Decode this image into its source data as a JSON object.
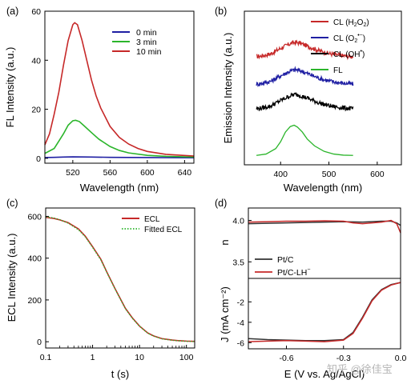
{
  "panels": [
    {
      "label": "(a)",
      "type": "line",
      "xlabel": "Wavelength (nm)",
      "ylabel": "FL Intensity (a.u.)",
      "xlim": [
        490,
        650
      ],
      "ylim": [
        -2,
        60
      ],
      "xticks": [
        520,
        560,
        600,
        640
      ],
      "yticks": [
        0,
        20,
        40,
        60
      ],
      "grid": false,
      "legend_placement": "top-right",
      "series": [
        {
          "name": "0 min",
          "color": "#1f1fa3",
          "x": [
            490,
            500,
            510,
            520,
            530,
            540,
            560,
            600,
            650
          ],
          "y": [
            0.3,
            0.4,
            0.5,
            0.6,
            0.55,
            0.5,
            0.4,
            0.3,
            0.2
          ]
        },
        {
          "name": "3 min",
          "color": "#2bb52b",
          "x": [
            490,
            500,
            505,
            510,
            515,
            520,
            523,
            527,
            532,
            540,
            548,
            560,
            570,
            580,
            600,
            620,
            650
          ],
          "y": [
            2,
            4,
            7,
            10,
            13.5,
            15.3,
            15.5,
            15,
            13.3,
            10.5,
            7.8,
            4.8,
            3.2,
            2.2,
            1.2,
            0.8,
            0.5
          ]
        },
        {
          "name": "10 min",
          "color": "#c62828",
          "x": [
            490,
            495,
            500,
            505,
            510,
            515,
            520,
            522,
            525,
            530,
            535,
            540,
            545,
            550,
            560,
            570,
            580,
            590,
            600,
            620,
            650
          ],
          "y": [
            5.5,
            10,
            18,
            27,
            38,
            48,
            54.5,
            55.3,
            54.5,
            48,
            40,
            32,
            25.5,
            20.5,
            13,
            8.5,
            5.8,
            4,
            2.8,
            1.6,
            0.9
          ]
        }
      ]
    },
    {
      "label": "(b)",
      "type": "line",
      "xlabel": "Wavelength (nm)",
      "ylabel": "Emission Intensity (a.u.)",
      "xlim": [
        325,
        650
      ],
      "xticks": [
        400,
        500,
        600
      ],
      "yticks": [],
      "grid": false,
      "legend_placement": "top-right",
      "series": [
        {
          "name": "CL (H₂O₂)",
          "label_main": "CL (H",
          "label_sub1": "2",
          "label_mid": "O",
          "label_sub2": "2",
          "label_end": ")",
          "color": "#c62828",
          "x": [
            350,
            360,
            380,
            400,
            420,
            430,
            440,
            460,
            480,
            500,
            520,
            540,
            550
          ],
          "y": [
            3.65,
            3.67,
            3.75,
            3.95,
            4.12,
            4.17,
            4.14,
            4.0,
            3.86,
            3.76,
            3.7,
            3.66,
            3.65
          ]
        },
        {
          "name": "CL (O₂•⁻)",
          "label_main": "CL (O",
          "label_sub": "2",
          "label_sup": "•−",
          "label_end": ")",
          "color": "#1f1fa3",
          "x": [
            350,
            360,
            380,
            400,
            420,
            430,
            440,
            460,
            480,
            500,
            520,
            540,
            550
          ],
          "y": [
            2.65,
            2.67,
            2.75,
            2.95,
            3.12,
            3.17,
            3.14,
            3.0,
            2.86,
            2.76,
            2.7,
            2.66,
            2.65
          ]
        },
        {
          "name": "CL (OH•)",
          "label_main": "CL (OH",
          "label_sup": "•",
          "label_end": ")",
          "color": "#000000",
          "x": [
            350,
            360,
            380,
            400,
            420,
            430,
            440,
            460,
            480,
            500,
            520,
            540,
            550
          ],
          "y": [
            1.75,
            1.77,
            1.85,
            2.05,
            2.22,
            2.27,
            2.24,
            2.1,
            1.96,
            1.86,
            1.8,
            1.76,
            1.75
          ]
        },
        {
          "name": "FL",
          "color": "#2bb52b",
          "x": [
            350,
            370,
            390,
            400,
            410,
            420,
            428,
            435,
            445,
            455,
            470,
            490,
            510,
            530,
            550
          ],
          "y": [
            0.05,
            0.1,
            0.3,
            0.55,
            0.9,
            1.1,
            1.15,
            1.08,
            0.9,
            0.65,
            0.4,
            0.2,
            0.1,
            0.06,
            0.05
          ]
        }
      ]
    },
    {
      "label": "(c)",
      "type": "line",
      "xlabel": "t (s)",
      "ylabel": "ECL Intensity (a.u.)",
      "xscale": "log",
      "xlim": [
        0.1,
        150
      ],
      "ylim": [
        -30,
        640
      ],
      "xticks": [
        0.1,
        1,
        10,
        100
      ],
      "xticklabels": [
        "0.1",
        "1",
        "10",
        "100"
      ],
      "yticks": [
        0,
        200,
        400,
        600
      ],
      "grid": false,
      "legend_placement": "top-right",
      "series": [
        {
          "name": "ECL",
          "color": "#c62828",
          "style": "solid",
          "x": [
            0.1,
            0.15,
            0.2,
            0.3,
            0.5,
            0.7,
            1,
            1.5,
            2,
            3,
            5,
            7,
            10,
            15,
            20,
            30,
            50,
            70,
            100,
            150
          ],
          "y": [
            595,
            590,
            583,
            570,
            540,
            505,
            455,
            395,
            335,
            255,
            160,
            115,
            75,
            42,
            28,
            15,
            8,
            5,
            3,
            2
          ]
        },
        {
          "name": "Fitted ECL",
          "color": "#2bb52b",
          "style": "dotted",
          "x": [
            0.1,
            0.15,
            0.2,
            0.3,
            0.5,
            0.7,
            1,
            1.5,
            2,
            3,
            5,
            7,
            10,
            15,
            20,
            30,
            50,
            70,
            100,
            150
          ],
          "y": [
            598,
            592,
            584,
            568,
            536,
            502,
            452,
            392,
            333,
            253,
            158,
            113,
            74,
            41,
            27,
            14,
            7,
            4,
            2,
            1
          ]
        }
      ]
    },
    {
      "label": "(d)",
      "type": "line",
      "xlabel": "E (V vs. Ag/AgCl)",
      "xlim": [
        -0.8,
        0.0
      ],
      "xticks": [
        -0.6,
        -0.3,
        0.0
      ],
      "xticklabels": [
        "-0.6",
        "-0.3",
        "0.0"
      ],
      "grid": false,
      "legend_placement": "center-left",
      "top": {
        "ylabel": "n",
        "ylim": [
          3.3,
          4.15
        ],
        "yticks": [
          3.5,
          4.0
        ],
        "yticklabels": [
          "3.5",
          "4.0"
        ],
        "series": [
          {
            "name": "Pt/C",
            "color": "#333333",
            "x": [
              -0.8,
              -0.7,
              -0.6,
              -0.5,
              -0.4,
              -0.3,
              -0.2,
              -0.1,
              -0.05,
              -0.02,
              0.0
            ],
            "y": [
              3.96,
              3.965,
              3.97,
              3.975,
              3.98,
              3.985,
              3.98,
              3.99,
              3.99,
              3.97,
              3.94
            ]
          },
          {
            "name": "Pt/C-LH⁻",
            "color": "#c62828",
            "x": [
              -0.8,
              -0.7,
              -0.6,
              -0.5,
              -0.4,
              -0.3,
              -0.25,
              -0.2,
              -0.1,
              -0.05,
              -0.02,
              0.0
            ],
            "y": [
              3.98,
              3.985,
              3.99,
              3.99,
              3.995,
              3.99,
              3.97,
              3.96,
              3.98,
              4.0,
              3.96,
              3.85
            ]
          }
        ]
      },
      "bottom": {
        "ylabel": "J (mA cm⁻²)",
        "ylim": [
          -6.6,
          0.3
        ],
        "yticks": [
          -6,
          -4,
          -2
        ],
        "yticklabels": [
          "-6",
          "-4",
          "-2"
        ],
        "series": [
          {
            "name": "Pt/C",
            "color": "#333333",
            "x": [
              -0.8,
              -0.7,
              -0.6,
              -0.5,
              -0.4,
              -0.3,
              -0.25,
              -0.2,
              -0.15,
              -0.1,
              -0.05,
              0.0
            ],
            "y": [
              -5.6,
              -5.7,
              -5.75,
              -5.8,
              -5.8,
              -5.7,
              -5.0,
              -3.5,
              -1.8,
              -0.8,
              -0.3,
              -0.1
            ]
          },
          {
            "name": "Pt/C-LH⁻",
            "color": "#c62828",
            "x": [
              -0.8,
              -0.7,
              -0.6,
              -0.5,
              -0.4,
              -0.3,
              -0.25,
              -0.2,
              -0.15,
              -0.1,
              -0.05,
              0.0
            ],
            "y": [
              -5.9,
              -5.85,
              -5.8,
              -5.85,
              -5.9,
              -5.75,
              -5.1,
              -3.6,
              -1.9,
              -0.85,
              -0.35,
              -0.1
            ]
          }
        ],
        "legend": [
          {
            "text": "Pt/C",
            "color": "#333333"
          },
          {
            "main": "Pt/C-LH",
            "sup": "−",
            "color": "#c62828"
          }
        ]
      }
    }
  ],
  "watermark": "知乎 @徐佳宝"
}
